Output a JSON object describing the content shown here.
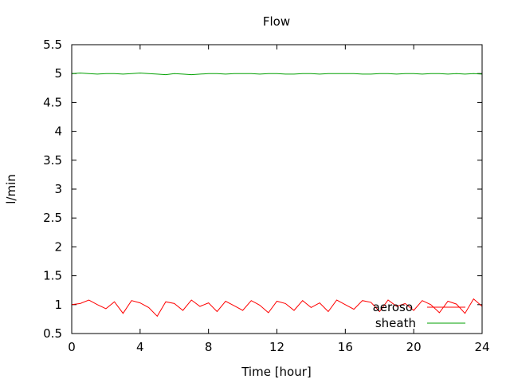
{
  "chart_data": {
    "type": "line",
    "title": "Flow",
    "xlabel": "Time [hour]",
    "ylabel": "l/min",
    "xlim": [
      0,
      24
    ],
    "ylim": [
      0.5,
      5.5
    ],
    "xticks": [
      0,
      4,
      8,
      12,
      16,
      20,
      24
    ],
    "yticks": [
      0.5,
      1,
      1.5,
      2,
      2.5,
      3,
      3.5,
      4,
      4.5,
      5,
      5.5
    ],
    "grid": false,
    "legend_position": "bottom-right",
    "series": [
      {
        "name": "aeroso",
        "color": "#ff0000",
        "x": [
          0,
          0.5,
          1,
          1.5,
          2,
          2.5,
          3,
          3.5,
          4,
          4.5,
          5,
          5.5,
          6,
          6.5,
          7,
          7.5,
          8,
          8.5,
          9,
          9.5,
          10,
          10.5,
          11,
          11.5,
          12,
          12.5,
          13,
          13.5,
          14,
          14.5,
          15,
          15.5,
          16,
          16.5,
          17,
          17.5,
          18,
          18.5,
          19,
          19.5,
          20,
          20.5,
          21,
          21.5,
          22,
          22.5,
          23,
          23.5,
          24
        ],
        "y": [
          1.0,
          1.02,
          1.08,
          1.0,
          0.93,
          1.05,
          0.85,
          1.07,
          1.03,
          0.95,
          0.8,
          1.05,
          1.02,
          0.9,
          1.08,
          0.97,
          1.03,
          0.88,
          1.06,
          0.98,
          0.9,
          1.07,
          0.99,
          0.86,
          1.06,
          1.02,
          0.9,
          1.07,
          0.95,
          1.03,
          0.88,
          1.08,
          1.0,
          0.92,
          1.07,
          1.04,
          0.88,
          1.08,
          0.97,
          1.02,
          0.9,
          1.07,
          1.0,
          0.86,
          1.06,
          1.01,
          0.85,
          1.1,
          0.97
        ]
      },
      {
        "name": "sheath",
        "color": "#00a000",
        "x": [
          0,
          0.5,
          1,
          1.5,
          2,
          2.5,
          3,
          3.5,
          4,
          4.5,
          5,
          5.5,
          6,
          6.5,
          7,
          7.5,
          8,
          8.5,
          9,
          9.5,
          10,
          10.5,
          11,
          11.5,
          12,
          12.5,
          13,
          13.5,
          14,
          14.5,
          15,
          15.5,
          16,
          16.5,
          17,
          17.5,
          18,
          18.5,
          19,
          19.5,
          20,
          20.5,
          21,
          21.5,
          22,
          22.5,
          23,
          23.5,
          24
        ],
        "y": [
          5.0,
          5.01,
          5.0,
          4.99,
          5.0,
          5.0,
          4.99,
          5.0,
          5.01,
          5.0,
          4.99,
          4.98,
          5.0,
          4.99,
          4.98,
          4.99,
          5.0,
          5.0,
          4.99,
          5.0,
          5.0,
          5.0,
          4.99,
          5.0,
          5.0,
          4.99,
          4.99,
          5.0,
          5.0,
          4.99,
          5.0,
          5.0,
          5.0,
          5.0,
          4.99,
          4.99,
          5.0,
          5.0,
          4.99,
          5.0,
          5.0,
          4.99,
          5.0,
          5.0,
          4.99,
          5.0,
          4.99,
          5.0,
          4.99
        ]
      }
    ]
  }
}
